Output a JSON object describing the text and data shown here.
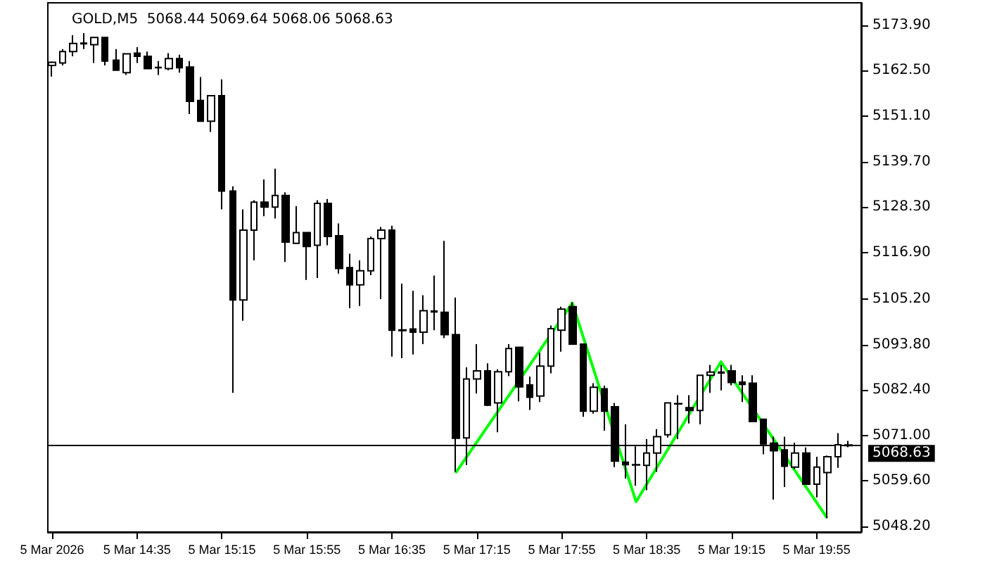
{
  "chart_data": {
    "type": "candlestick",
    "title": "GOLD,M5  5068.44 5069.64 5068.06 5068.63",
    "x": [
      "2026-03-05T13:55",
      "2026-03-05T14:00",
      "2026-03-05T14:05",
      "2026-03-05T14:10",
      "2026-03-05T14:15",
      "2026-03-05T14:20",
      "2026-03-05T14:25",
      "2026-03-05T14:30",
      "2026-03-05T14:35",
      "2026-03-05T14:40",
      "2026-03-05T14:45",
      "2026-03-05T14:50",
      "2026-03-05T14:55",
      "2026-03-05T15:00",
      "2026-03-05T15:05",
      "2026-03-05T15:10",
      "2026-03-05T15:15",
      "2026-03-05T15:20",
      "2026-03-05T15:25",
      "2026-03-05T15:30",
      "2026-03-05T15:35",
      "2026-03-05T15:40",
      "2026-03-05T15:45",
      "2026-03-05T15:50",
      "2026-03-05T15:55",
      "2026-03-05T16:00",
      "2026-03-05T16:05",
      "2026-03-05T16:10",
      "2026-03-05T16:15",
      "2026-03-05T16:20",
      "2026-03-05T16:25",
      "2026-03-05T16:30",
      "2026-03-05T16:35",
      "2026-03-05T16:40",
      "2026-03-05T16:45",
      "2026-03-05T16:50",
      "2026-03-05T16:55",
      "2026-03-05T17:00",
      "2026-03-05T17:05",
      "2026-03-05T17:10",
      "2026-03-05T17:15",
      "2026-03-05T17:20",
      "2026-03-05T17:25",
      "2026-03-05T17:30",
      "2026-03-05T17:35",
      "2026-03-05T17:40",
      "2026-03-05T17:45",
      "2026-03-05T17:50",
      "2026-03-05T17:55",
      "2026-03-05T18:00",
      "2026-03-05T18:05",
      "2026-03-05T18:10",
      "2026-03-05T18:15",
      "2026-03-05T18:20",
      "2026-03-05T18:25",
      "2026-03-05T18:30",
      "2026-03-05T18:35",
      "2026-03-05T18:40",
      "2026-03-05T18:45",
      "2026-03-05T18:50",
      "2026-03-05T18:55",
      "2026-03-05T19:00",
      "2026-03-05T19:05",
      "2026-03-05T19:10",
      "2026-03-05T19:15",
      "2026-03-05T19:20",
      "2026-03-05T19:25",
      "2026-03-05T19:30",
      "2026-03-05T19:35",
      "2026-03-05T19:40",
      "2026-03-05T19:45",
      "2026-03-05T19:50",
      "2026-03-05T19:55",
      "2026-03-05T20:00",
      "2026-03-05T20:05",
      "2026-03-05T20:10"
    ],
    "series": [
      {
        "color": "#000000",
        "ohlc": [
          [
            5163.8,
            5164.8,
            5161.0,
            5164.6
          ],
          [
            5164.4,
            5167.9,
            5163.8,
            5167.3
          ],
          [
            5167.3,
            5171.4,
            5166.1,
            5169.3
          ],
          [
            5169.4,
            5171.9,
            5167.9,
            5169.2
          ],
          [
            5169.0,
            5171.0,
            5164.4,
            5170.8
          ],
          [
            5170.8,
            5171.0,
            5163.8,
            5164.9
          ],
          [
            5165.1,
            5167.9,
            5162.6,
            5162.6
          ],
          [
            5162.0,
            5166.7,
            5161.4,
            5166.7
          ],
          [
            5166.9,
            5168.4,
            5164.4,
            5166.1
          ],
          [
            5166.1,
            5167.3,
            5163.0,
            5163.0
          ],
          [
            5163.3,
            5164.9,
            5161.4,
            5163.2
          ],
          [
            5163.0,
            5166.9,
            5162.6,
            5165.5
          ],
          [
            5165.5,
            5166.5,
            5162.0,
            5163.2
          ],
          [
            5163.4,
            5164.9,
            5151.6,
            5154.8
          ],
          [
            5155.0,
            5160.9,
            5149.8,
            5149.8
          ],
          [
            5149.8,
            5156.2,
            5147.1,
            5156.2
          ],
          [
            5156.2,
            5160.3,
            5127.7,
            5132.3
          ],
          [
            5132.3,
            5133.5,
            5081.7,
            5105.0
          ],
          [
            5105.0,
            5127.7,
            5099.8,
            5122.5
          ],
          [
            5122.5,
            5130.0,
            5114.9,
            5129.5
          ],
          [
            5129.5,
            5135.2,
            5126.0,
            5128.3
          ],
          [
            5128.3,
            5137.9,
            5125.4,
            5131.2
          ],
          [
            5131.2,
            5132.0,
            5114.5,
            5119.5
          ],
          [
            5119.2,
            5128.5,
            5119.2,
            5121.9
          ],
          [
            5121.9,
            5121.9,
            5110.0,
            5118.4
          ],
          [
            5118.7,
            5130.0,
            5110.5,
            5129.2
          ],
          [
            5129.2,
            5130.3,
            5118.7,
            5120.9
          ],
          [
            5121.1,
            5124.2,
            5111.6,
            5112.9
          ],
          [
            5113.1,
            5116.6,
            5102.9,
            5108.8
          ],
          [
            5108.8,
            5114.9,
            5103.5,
            5112.3
          ],
          [
            5112.3,
            5120.9,
            5111.2,
            5120.4
          ],
          [
            5120.4,
            5123.3,
            5105.2,
            5122.5
          ],
          [
            5122.5,
            5123.6,
            5090.8,
            5097.4
          ],
          [
            5097.5,
            5109.1,
            5090.4,
            5097.3
          ],
          [
            5097.7,
            5107.3,
            5091.3,
            5096.9
          ],
          [
            5096.9,
            5106.2,
            5093.9,
            5102.3
          ],
          [
            5102.2,
            5111.1,
            5097.4,
            5102.0
          ],
          [
            5101.9,
            5119.8,
            5095.4,
            5096.3
          ],
          [
            5096.3,
            5105.6,
            5061.9,
            5070.3
          ],
          [
            5070.4,
            5088.1,
            5063.6,
            5085.2
          ],
          [
            5085.2,
            5093.9,
            5081.5,
            5087.2
          ],
          [
            5087.2,
            5089.1,
            5078.4,
            5078.6
          ],
          [
            5079.2,
            5087.6,
            5071.8,
            5087.0
          ],
          [
            5087.0,
            5093.9,
            5085.9,
            5092.8
          ],
          [
            5093.1,
            5093.3,
            5079.6,
            5083.2
          ],
          [
            5083.7,
            5085.8,
            5077.4,
            5080.6
          ],
          [
            5080.9,
            5091.8,
            5079.4,
            5088.4
          ],
          [
            5088.4,
            5098.6,
            5086.6,
            5097.8
          ],
          [
            5097.4,
            5103.3,
            5092.0,
            5102.7
          ],
          [
            5103.3,
            5104.4,
            5093.9,
            5093.9
          ],
          [
            5093.9,
            5093.9,
            5075.7,
            5077.1
          ],
          [
            5077.1,
            5084.1,
            5076.5,
            5083.1
          ],
          [
            5082.7,
            5083.5,
            5072.2,
            5077.1
          ],
          [
            5078.2,
            5079.2,
            5063.1,
            5064.6
          ],
          [
            5064.3,
            5073.8,
            5060.2,
            5063.7
          ],
          [
            5063.7,
            5068.3,
            5058.4,
            5063.6
          ],
          [
            5063.5,
            5070.1,
            5057.3,
            5066.6
          ],
          [
            5066.6,
            5072.6,
            5061.9,
            5070.7
          ],
          [
            5071.2,
            5079.2,
            5070.5,
            5079.2
          ],
          [
            5079.0,
            5081.1,
            5070.1,
            5078.9
          ],
          [
            5078.0,
            5081.1,
            5074.0,
            5077.3
          ],
          [
            5077.3,
            5086.1,
            5073.8,
            5086.1
          ],
          [
            5086.1,
            5088.7,
            5081.7,
            5086.9
          ],
          [
            5086.9,
            5088.7,
            5082.3,
            5086.7
          ],
          [
            5087.2,
            5088.7,
            5083.6,
            5084.3
          ],
          [
            5084.4,
            5086.1,
            5079.4,
            5083.8
          ],
          [
            5084.1,
            5086.1,
            5074.5,
            5074.5
          ],
          [
            5075.1,
            5075.1,
            5066.3,
            5068.9
          ],
          [
            5069.1,
            5070.7,
            5054.9,
            5067.2
          ],
          [
            5067.4,
            5070.7,
            5058.1,
            5063.3
          ],
          [
            5063.1,
            5069.2,
            5062.6,
            5066.6
          ],
          [
            5066.6,
            5068.0,
            5058.8,
            5058.8
          ],
          [
            5058.8,
            5065.7,
            5055.5,
            5063.1
          ],
          [
            5061.7,
            5066.0,
            5050.3,
            5065.7
          ],
          [
            5065.7,
            5071.6,
            5062.9,
            5068.7
          ],
          [
            5068.44,
            5069.64,
            5068.06,
            5068.63
          ]
        ]
      },
      {
        "type": "line",
        "color": "#00ff00",
        "x": [
          "2026-03-05T17:05",
          "2026-03-05T18:00",
          "2026-03-05T18:30",
          "2026-03-05T19:10",
          "2026-03-05T20:00"
        ],
        "values": [
          5061.6,
          5104.2,
          5054.4,
          5089.5,
          5050.3
        ]
      }
    ],
    "marker": "none",
    "ref_lines": [
      {
        "axis": "y",
        "value": 5068.63,
        "label": "5068.63",
        "color": "#000000"
      }
    ],
    "xlim": [
      "2026-03-05T13:53",
      "2026-03-05T20:16"
    ],
    "xticks": [
      {
        "value": "2026-03-05T13:55",
        "label": "5 Mar 2026"
      },
      {
        "value": "2026-03-05T14:35",
        "label": "5 Mar 14:35"
      },
      {
        "value": "2026-03-05T15:15",
        "label": "5 Mar 15:15"
      },
      {
        "value": "2026-03-05T15:55",
        "label": "5 Mar 15:55"
      },
      {
        "value": "2026-03-05T16:35",
        "label": "5 Mar 16:35"
      },
      {
        "value": "2026-03-05T17:15",
        "label": "5 Mar 17:15"
      },
      {
        "value": "2026-03-05T17:55",
        "label": "5 Mar 17:55"
      },
      {
        "value": "2026-03-05T18:35",
        "label": "5 Mar 18:35"
      },
      {
        "value": "2026-03-05T19:15",
        "label": "5 Mar 19:15"
      },
      {
        "value": "2026-03-05T19:55",
        "label": "5 Mar 19:55"
      }
    ],
    "ylim": [
      5046.8,
      5179.5
    ],
    "yticks": [
      {
        "value": 5048.2,
        "label": "5048.20"
      },
      {
        "value": 5059.6,
        "label": "5059.60"
      },
      {
        "value": 5071.0,
        "label": "5071.00"
      },
      {
        "value": 5082.4,
        "label": "5082.40"
      },
      {
        "value": 5093.8,
        "label": "5093.80"
      },
      {
        "value": 5105.2,
        "label": "5105.20"
      },
      {
        "value": 5116.9,
        "label": "5116.90"
      },
      {
        "value": 5128.3,
        "label": "5128.30"
      },
      {
        "value": 5139.7,
        "label": "5139.70"
      },
      {
        "value": 5151.1,
        "label": "5151.10"
      },
      {
        "value": 5162.5,
        "label": "5162.50"
      },
      {
        "value": 5173.9,
        "label": "5173.90"
      }
    ],
    "grid": false
  }
}
